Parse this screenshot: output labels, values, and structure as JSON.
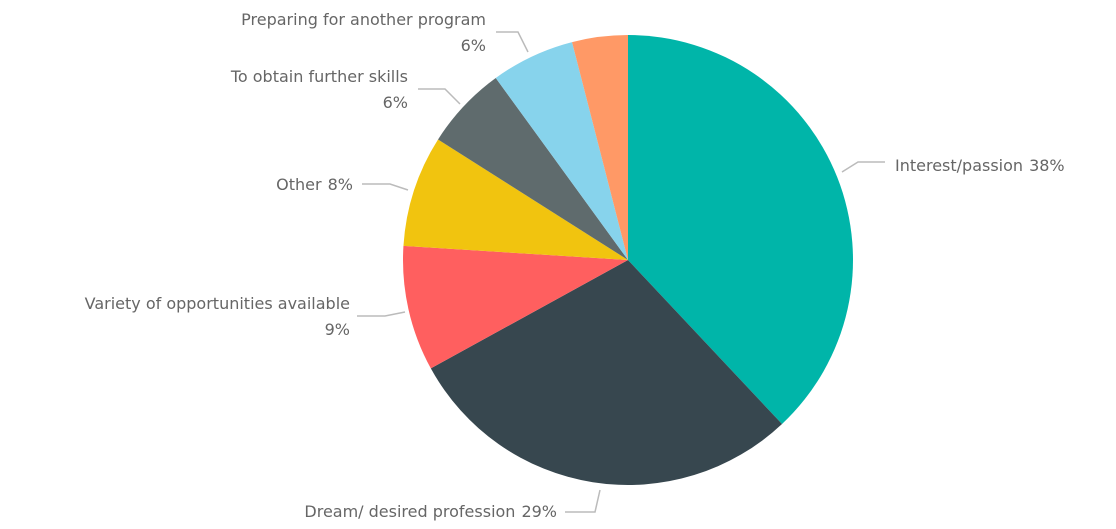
{
  "chart_data": {
    "type": "pie",
    "categories": [
      "Interest/passion",
      "Dream/ desired profession",
      "Variety of opportunities available",
      "Other",
      "To obtain further skills",
      "Preparing for another program",
      null
    ],
    "values": [
      38,
      29,
      9,
      8,
      6,
      6,
      4
    ],
    "value_labels": [
      "38%",
      "29%",
      "9%",
      "8%",
      "6%",
      "6%",
      null
    ],
    "colors": [
      "#00b5a9",
      "#37474f",
      "#ff5f5f",
      "#f1c40f",
      "#5f6b6d",
      "#87d3ec",
      "#ff9966"
    ]
  }
}
